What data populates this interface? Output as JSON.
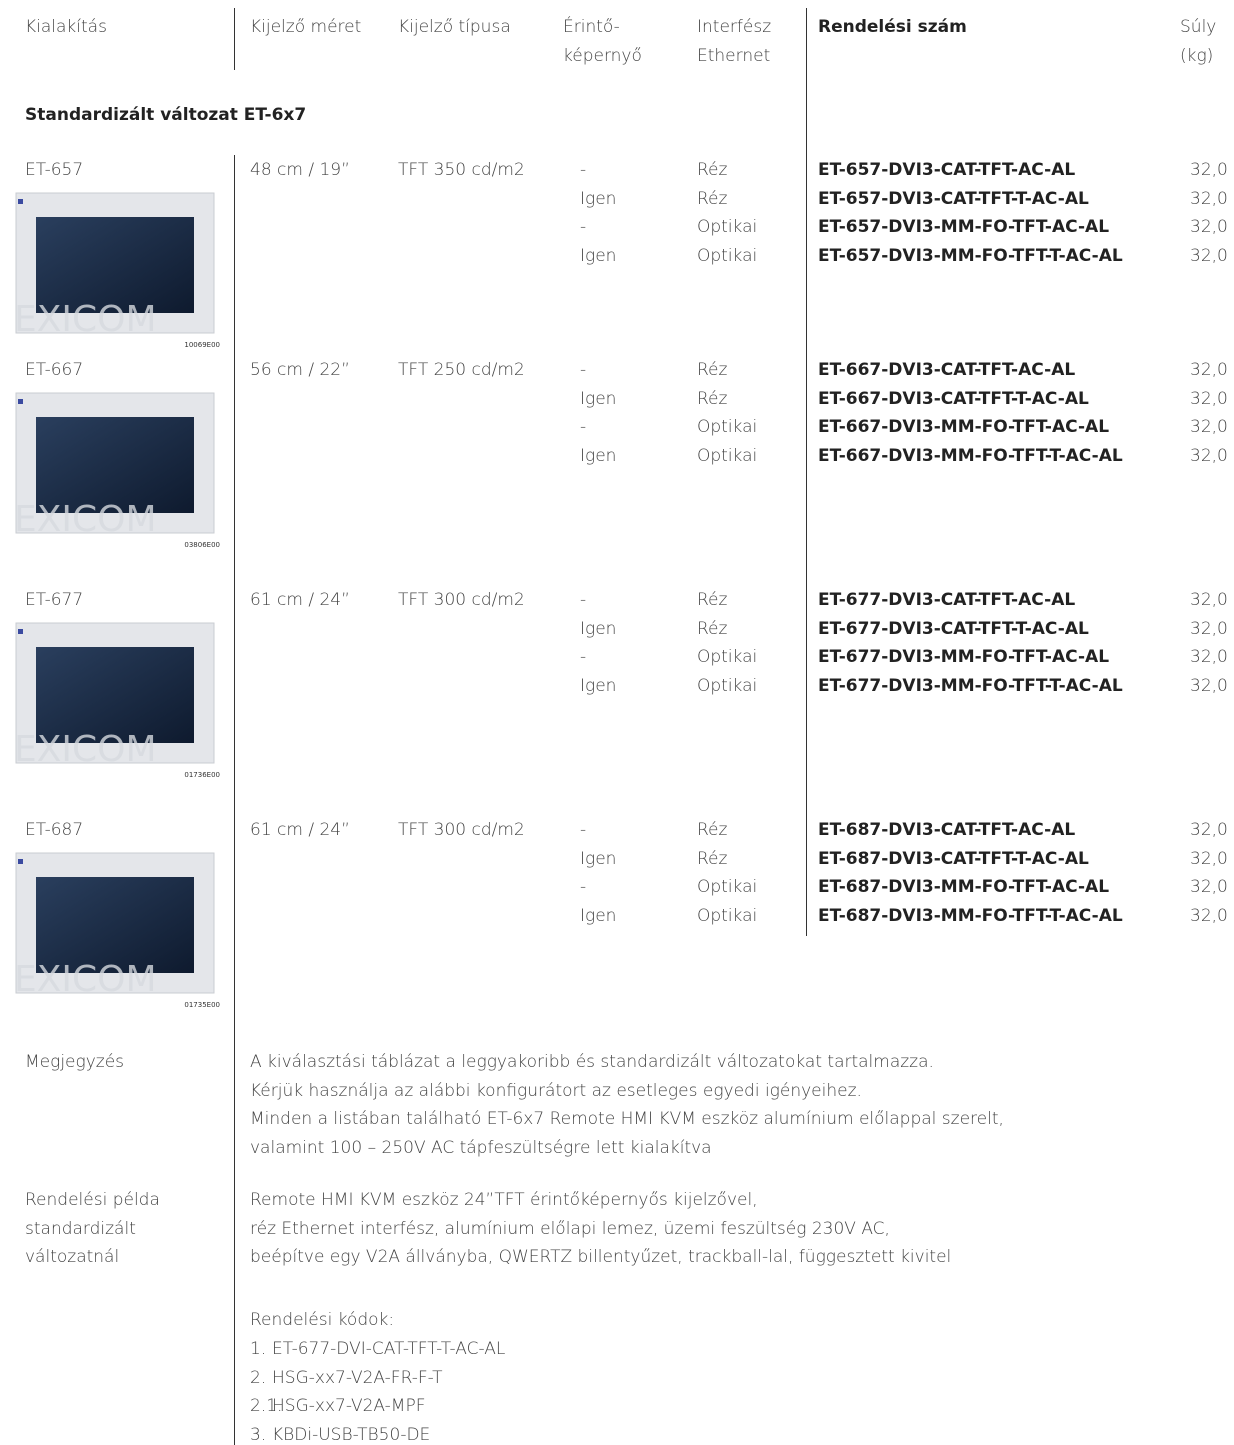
{
  "header": {
    "columns": [
      {
        "lines": [
          "Kialakítás"
        ]
      },
      {
        "lines": [
          "Kijelző méret"
        ]
      },
      {
        "lines": [
          "Kijelző típusa"
        ]
      },
      {
        "lines": [
          "Érintő-",
          "képernyő"
        ]
      },
      {
        "lines": [
          "Interfész",
          "Ethernet"
        ]
      },
      {
        "lines": [
          "Rendelési szám"
        ]
      },
      {
        "lines": [
          "Súly",
          "(kg)"
        ]
      }
    ]
  },
  "section_title": "Standardizált változat ET-6x7",
  "watermark": "EXICOM",
  "products": [
    {
      "name": "ET-657",
      "size": "48 cm / 19”",
      "display": "TFT 350 cd/m2",
      "image_code": "10069E00",
      "rows": [
        {
          "touch": "-",
          "interface": "Réz",
          "order": "ET-657-DVI3-CAT-TFT-AC-AL",
          "weight": "32,0"
        },
        {
          "touch": "Igen",
          "interface": "Réz",
          "order": "ET-657-DVI3-CAT-TFT-T-AC-AL",
          "weight": "32,0"
        },
        {
          "touch": "-",
          "interface": "Optikai",
          "order": "ET-657-DVI3-MM-FO-TFT-AC-AL",
          "weight": "32,0"
        },
        {
          "touch": "Igen",
          "interface": "Optikai",
          "order": "ET-657-DVI3-MM-FO-TFT-T-AC-AL",
          "weight": "32,0"
        }
      ]
    },
    {
      "name": "ET-667",
      "size": "56 cm / 22”",
      "display": "TFT 250 cd/m2",
      "image_code": "03806E00",
      "rows": [
        {
          "touch": "-",
          "interface": "Réz",
          "order": "ET-667-DVI3-CAT-TFT-AC-AL",
          "weight": "32,0"
        },
        {
          "touch": "Igen",
          "interface": "Réz",
          "order": "ET-667-DVI3-CAT-TFT-T-AC-AL",
          "weight": "32,0"
        },
        {
          "touch": "-",
          "interface": "Optikai",
          "order": "ET-667-DVI3-MM-FO-TFT-AC-AL",
          "weight": "32,0"
        },
        {
          "touch": "Igen",
          "interface": "Optikai",
          "order": "ET-667-DVI3-MM-FO-TFT-T-AC-AL",
          "weight": "32,0"
        }
      ]
    },
    {
      "name": "ET-677",
      "size": "61 cm / 24”",
      "display": "TFT 300 cd/m2",
      "image_code": "01736E00",
      "rows": [
        {
          "touch": "-",
          "interface": "Réz",
          "order": "ET-677-DVI3-CAT-TFT-AC-AL",
          "weight": "32,0"
        },
        {
          "touch": "Igen",
          "interface": "Réz",
          "order": "ET-677-DVI3-CAT-TFT-T-AC-AL",
          "weight": "32,0"
        },
        {
          "touch": "-",
          "interface": "Optikai",
          "order": "ET-677-DVI3-MM-FO-TFT-AC-AL",
          "weight": "32,0"
        },
        {
          "touch": "Igen",
          "interface": "Optikai",
          "order": "ET-677-DVI3-MM-FO-TFT-T-AC-AL",
          "weight": "32,0"
        }
      ]
    },
    {
      "name": "ET-687",
      "size": "61 cm / 24”",
      "display": "TFT 300 cd/m2",
      "image_code": "01735E00",
      "rows": [
        {
          "touch": "-",
          "interface": "Réz",
          "order": "ET-687-DVI3-CAT-TFT-AC-AL",
          "weight": "32,0"
        },
        {
          "touch": "Igen",
          "interface": "Réz",
          "order": "ET-687-DVI3-CAT-TFT-T-AC-AL",
          "weight": "32,0"
        },
        {
          "touch": "-",
          "interface": "Optikai",
          "order": "ET-687-DVI3-MM-FO-TFT-AC-AL",
          "weight": "32,0"
        },
        {
          "touch": "Igen",
          "interface": "Optikai",
          "order": "ET-687-DVI3-MM-FO-TFT-T-AC-AL",
          "weight": "32,0"
        }
      ]
    }
  ],
  "note": {
    "label": "Megjegyzés",
    "lines": [
      "A kiválasztási táblázat a leggyakoribb és standardizált változatokat tartalmazza.",
      "Kérjük használja az alábbi konfigurátort az esetleges egyedi igényeihez.",
      "Minden a listában található ET-6x7 Remote HMI KVM eszköz alumínium előlappal szerelt,",
      "valamint 100 – 250V AC tápfeszültségre lett kialakítva"
    ]
  },
  "example": {
    "label_lines": [
      "Rendelési példa",
      "standardizált",
      "változatnál"
    ],
    "lines": [
      "Remote HMI KVM eszköz 24”TFT érintőképernyős kijelzővel,",
      "réz Ethernet interfész, alumínium előlapi lemez, üzemi feszültség 230V AC,",
      "beépítve egy V2A állványba, QWERTZ billentyűzet, trackball-lal, függesztett kivitel"
    ],
    "codes_title": "Rendelési kódok:",
    "codes": [
      {
        "num": "1.",
        "code": "ET-677-DVI-CAT-TFT-T-AC-AL"
      },
      {
        "num": "2.",
        "code": "HSG-xx7-V2A-FR-F-T"
      },
      {
        "num": "2.1.",
        "code": "HSG-xx7-V2A-MPF"
      },
      {
        "num": "3.",
        "code": "KBDi-USB-TB50-DE"
      }
    ]
  }
}
